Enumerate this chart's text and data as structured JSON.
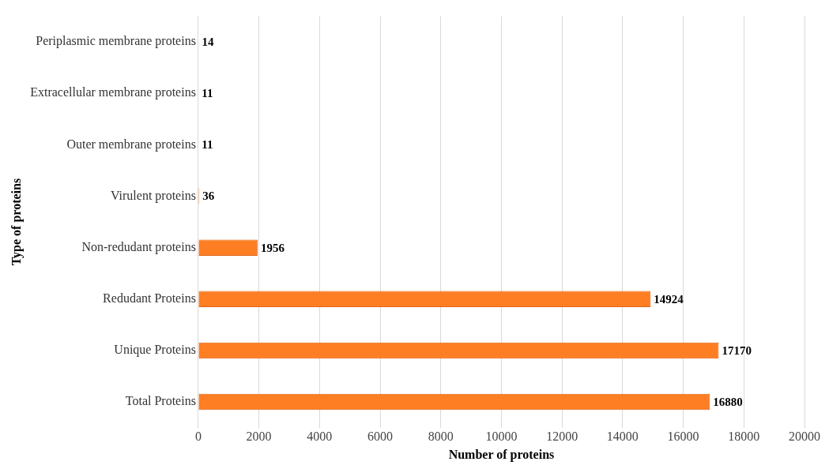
{
  "chart_data": {
    "type": "bar",
    "orientation": "horizontal",
    "xlabel": "Number of proteins",
    "ylabel": "Type of proteins",
    "categories": [
      "Periplasmic membrane proteins",
      "Extracellular membrane proteins",
      "Outer membrane proteins",
      "Virulent proteins",
      "Non-redudant proteins",
      "Redudant Proteins",
      "Unique Proteins",
      "Total Proteins"
    ],
    "values": [
      14,
      11,
      11,
      36,
      1956,
      14924,
      17170,
      16880
    ],
    "color": "#fd7e23",
    "xlim": [
      0,
      20000
    ],
    "xticks": [
      0,
      2000,
      4000,
      6000,
      8000,
      10000,
      12000,
      14000,
      16000,
      18000,
      20000
    ],
    "grid": "x",
    "data_labels": true,
    "legend": false
  }
}
